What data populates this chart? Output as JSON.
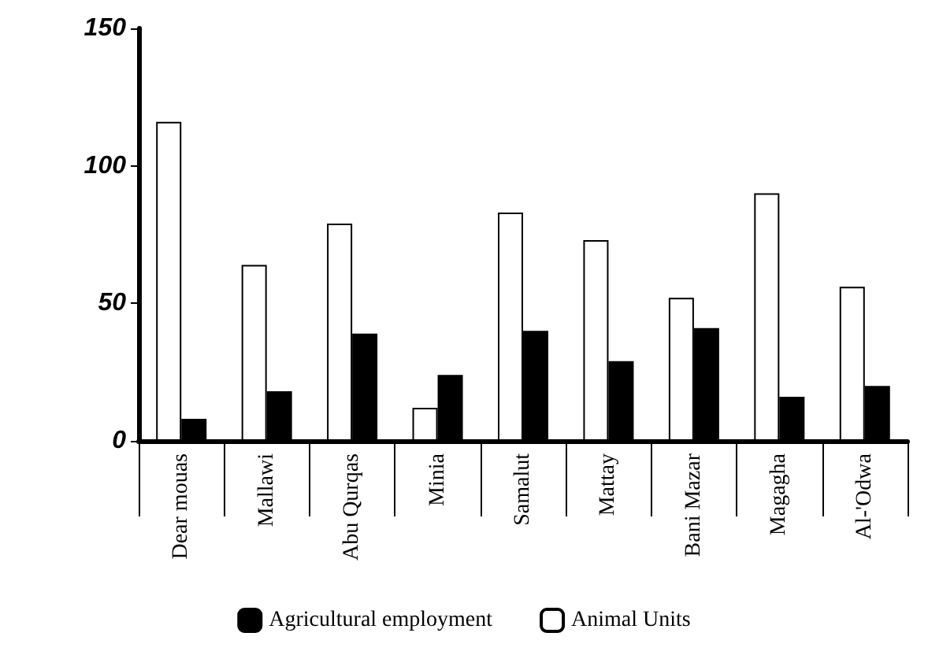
{
  "chart_data": {
    "type": "bar",
    "categories": [
      "Dear mouas",
      "Mallawi",
      "Abu Qurqas",
      "Minia",
      "Samalut",
      "Mattay",
      "Bani Mazar",
      "Magagha",
      "Al-'Odwa"
    ],
    "series": [
      {
        "name": "Animal Units",
        "color": "#ffffff",
        "values": [
          116,
          64,
          79,
          12,
          83,
          73,
          52,
          90,
          56
        ]
      },
      {
        "name": "Agricultural employment",
        "color": "#000000",
        "values": [
          8,
          18,
          39,
          24,
          40,
          29,
          41,
          16,
          20
        ]
      }
    ],
    "ylim": [
      0,
      150
    ],
    "yticks": [
      0,
      50,
      100,
      150
    ],
    "legend": "bottom"
  }
}
